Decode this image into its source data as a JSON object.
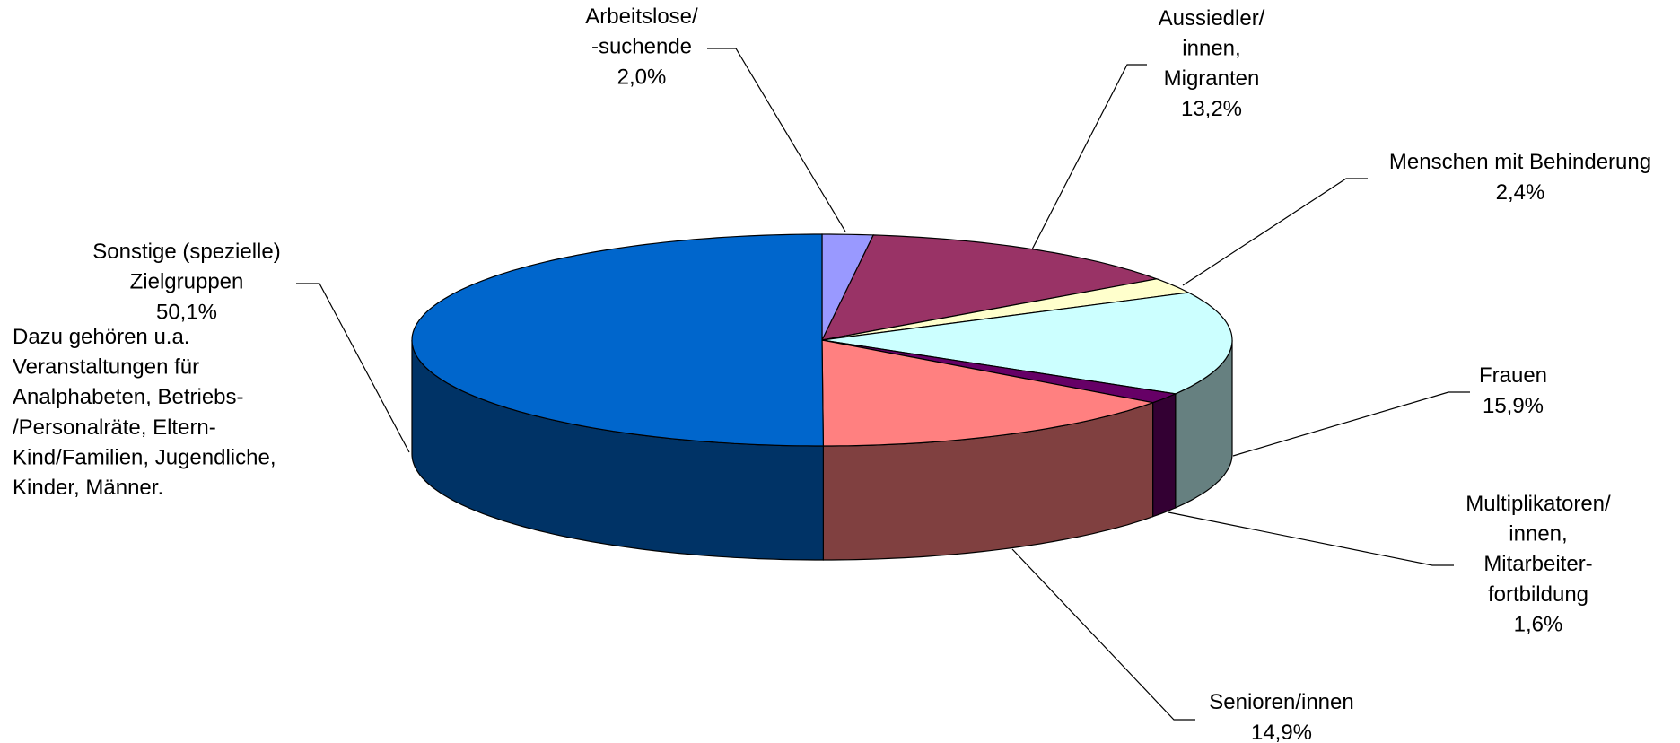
{
  "chart_data": {
    "type": "pie3d",
    "categories": [
      "Arbeitslose/\n-suchende",
      "Aussiedler/\ninnen,\nMigranten",
      "Menschen mit Behinderung",
      "Frauen",
      "Multiplikatoren/\ninnen,\nMitarbeiter-\nfortbildung",
      "Senioren/innen",
      "Sonstige (spezielle)\nZielgruppen"
    ],
    "values": [
      2.0,
      13.2,
      2.4,
      15.9,
      1.6,
      14.9,
      50.1
    ],
    "value_labels": [
      "2,0%",
      "13,2%",
      "2,4%",
      "15,9%",
      "1,6%",
      "14,9%",
      "50,1%"
    ],
    "colors": [
      "#9999ff",
      "#993366",
      "#ffffcc",
      "#ccffff",
      "#660066",
      "#ff8080",
      "#0066cc"
    ],
    "annotation": "Dazu gehören u.a.\nVeranstaltungen für\nAnalphabeten, Betriebs-\n/Personalräte, Eltern-\nKind/Familien, Jugendliche,\nKinder, Männer."
  }
}
